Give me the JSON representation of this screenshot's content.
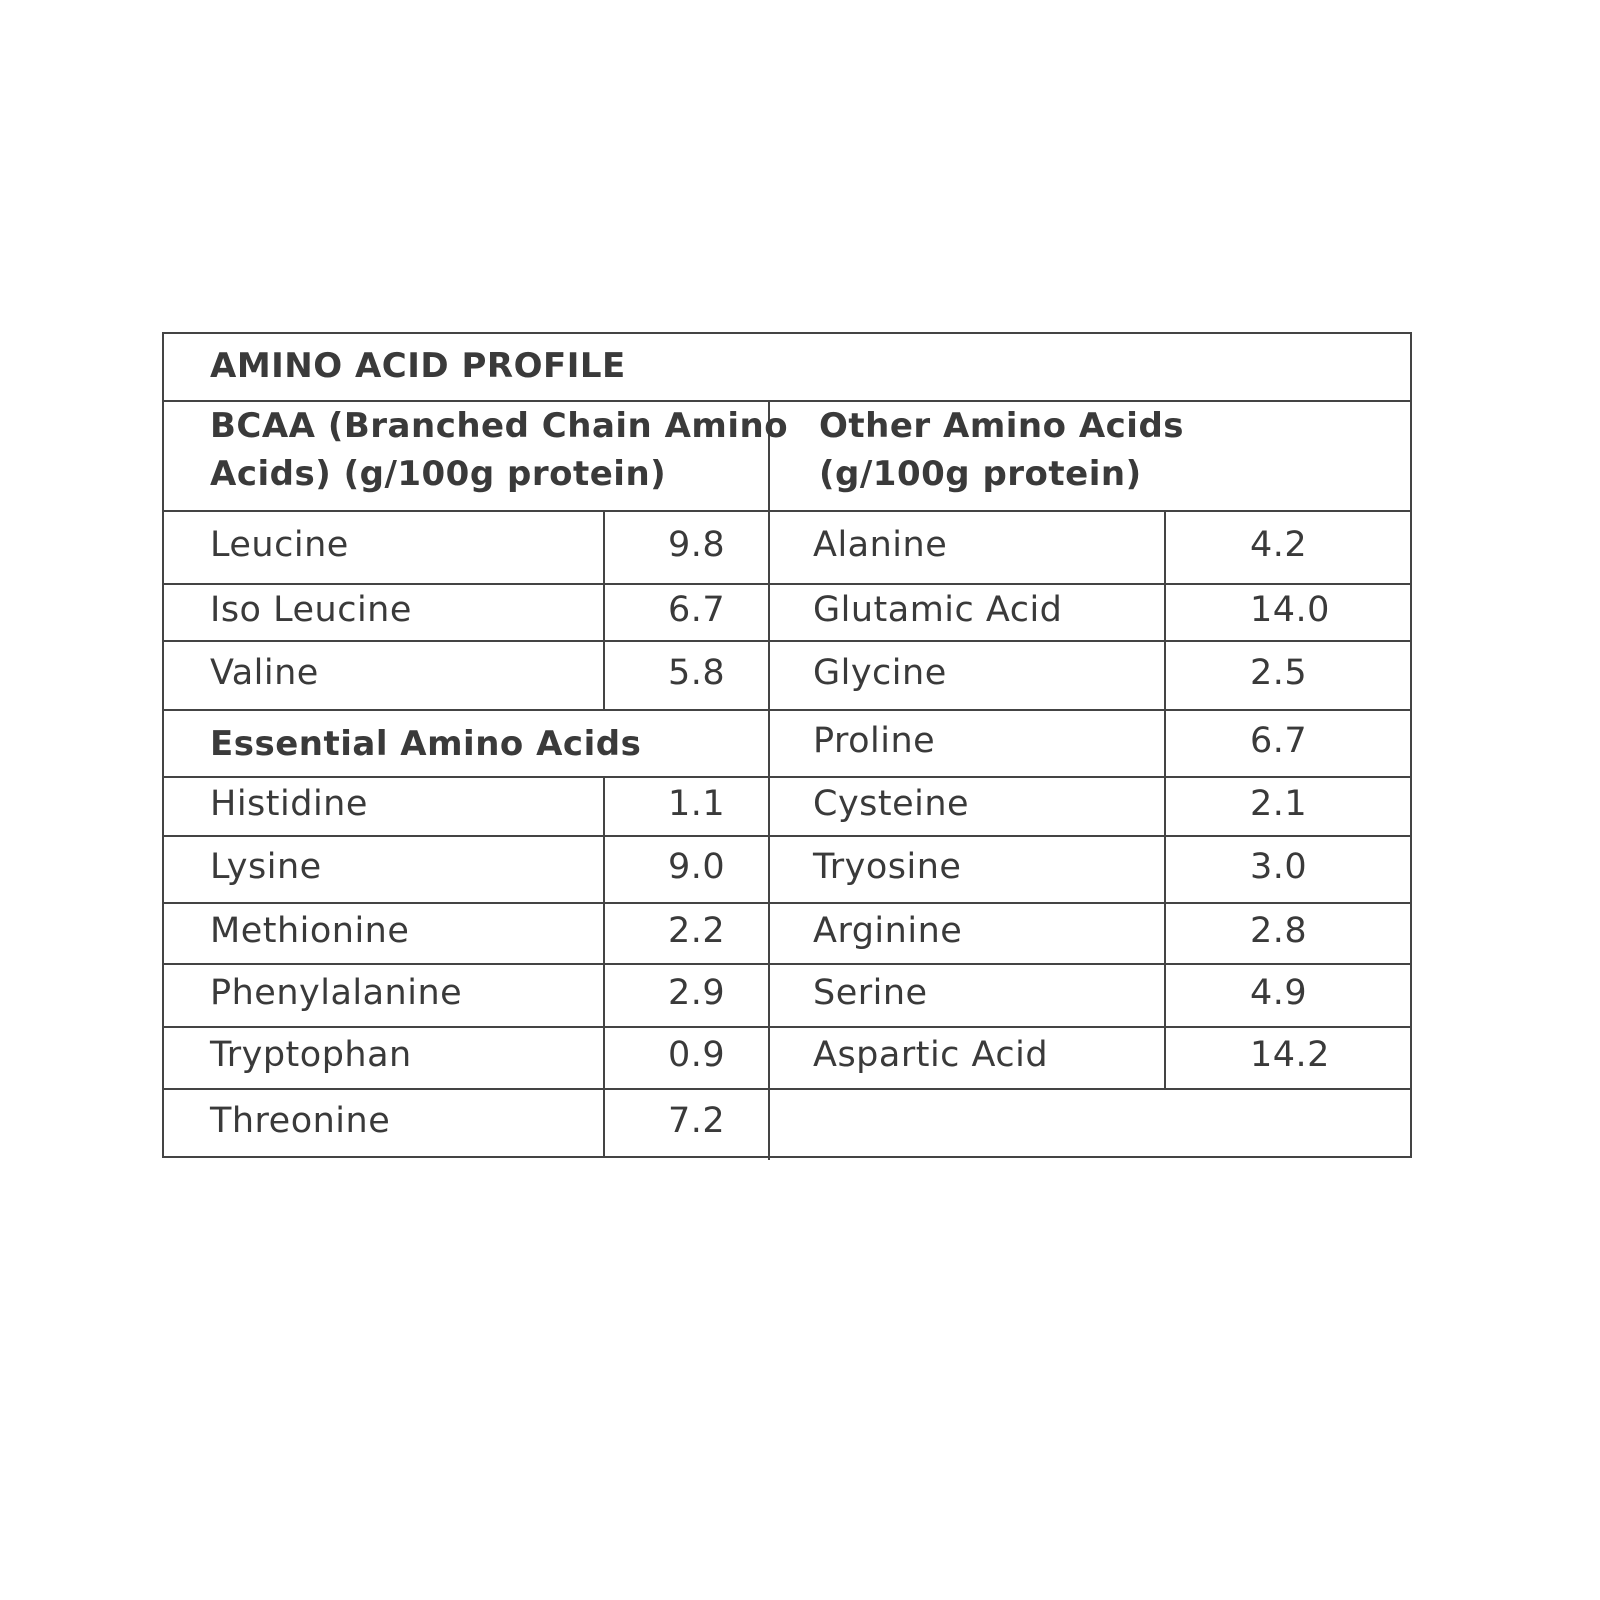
{
  "title": "AMINO ACID PROFILE",
  "bcaa_header": [
    "BCAA (Branched Chain Amino",
    "Acids) (g/100g protein)"
  ],
  "other_header": [
    "Other Amino Acids",
    "(g/100g protein)"
  ],
  "essential_header": "Essential Amino Acids",
  "bcaa": [
    {
      "name": "Leucine",
      "value": "9.8"
    },
    {
      "name": "Iso Leucine",
      "value": "6.7"
    },
    {
      "name": "Valine",
      "value": "5.8"
    }
  ],
  "essential": [
    {
      "name": "Histidine",
      "value": "1.1"
    },
    {
      "name": "Lysine",
      "value": "9.0"
    },
    {
      "name": "Methionine",
      "value": "2.2"
    },
    {
      "name": "Phenylalanine",
      "value": "2.9"
    },
    {
      "name": "Tryptophan",
      "value": "0.9"
    },
    {
      "name": "Threonine",
      "value": "7.2"
    }
  ],
  "other": [
    {
      "name": "Alanine",
      "value": "4.2"
    },
    {
      "name": "Glutamic Acid",
      "value": "14.0"
    },
    {
      "name": "Glycine",
      "value": "2.5"
    },
    {
      "name": "Proline",
      "value": "6.7"
    },
    {
      "name": "Cysteine",
      "value": "2.1"
    },
    {
      "name": "Tryosine",
      "value": "3.0"
    },
    {
      "name": "Arginine",
      "value": "2.8"
    },
    {
      "name": "Serine",
      "value": "4.9"
    },
    {
      "name": "Aspartic Acid",
      "value": "14.2"
    }
  ]
}
